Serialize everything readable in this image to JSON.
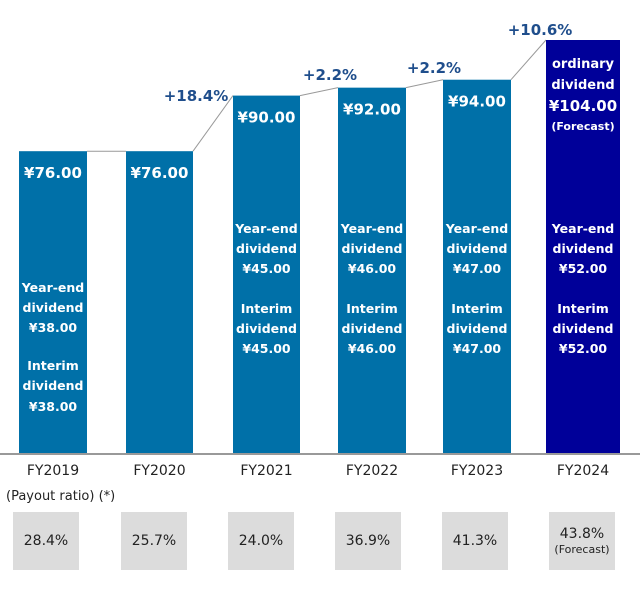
{
  "chart_data": {
    "type": "bar",
    "title": "",
    "xlabel": "",
    "ylabel": "",
    "categories": [
      "FY2019",
      "FY2020",
      "FY2021",
      "FY2022",
      "FY2023",
      "FY2024"
    ],
    "values": [
      76.0,
      76.0,
      90.0,
      92.0,
      94.0,
      104.0
    ],
    "ylim": [
      0,
      110
    ],
    "grid": false,
    "bars": [
      {
        "category": "FY2019",
        "total_label": "¥76.00",
        "year_end_label": [
          "Year-end",
          "dividend",
          "¥38.00"
        ],
        "interim_label": [
          "Interim",
          "dividend",
          "¥38.00"
        ],
        "year_end": 38.0,
        "interim": 38.0,
        "color": "#0070a8"
      },
      {
        "category": "FY2020",
        "total_label": "¥76.00",
        "color": "#0070a8"
      },
      {
        "category": "FY2021",
        "total_label": "¥90.00",
        "year_end_label": [
          "Year-end",
          "dividend",
          "¥45.00"
        ],
        "interim_label": [
          "Interim",
          "dividend",
          "¥45.00"
        ],
        "year_end": 45.0,
        "interim": 45.0,
        "color": "#0070a8"
      },
      {
        "category": "FY2022",
        "total_label": "¥92.00",
        "year_end_label": [
          "Year-end",
          "dividend",
          "¥46.00"
        ],
        "interim_label": [
          "Interim",
          "dividend",
          "¥46.00"
        ],
        "year_end": 46.0,
        "interim": 46.0,
        "color": "#0070a8"
      },
      {
        "category": "FY2023",
        "total_label": "¥94.00",
        "year_end_label": [
          "Year-end",
          "dividend",
          "¥47.00"
        ],
        "interim_label": [
          "Interim",
          "dividend",
          "¥47.00"
        ],
        "year_end": 47.0,
        "interim": 47.0,
        "color": "#0070a8"
      },
      {
        "category": "FY2024",
        "total_label": "¥104.00",
        "total_prefix": [
          "ordinary",
          "dividend"
        ],
        "total_note": "(Forecast)",
        "year_end_label": [
          "Year-end",
          "dividend",
          "¥52.00"
        ],
        "interim_label": [
          "Interim",
          "dividend",
          "¥52.00"
        ],
        "year_end": 52.0,
        "interim": 52.0,
        "color": "#000099"
      }
    ],
    "growth_annotations": [
      {
        "from": "FY2020",
        "to": "FY2021",
        "label": "+18.4%"
      },
      {
        "from": "FY2021",
        "to": "FY2022",
        "label": "+2.2%"
      },
      {
        "from": "FY2022",
        "to": "FY2023",
        "label": "+2.2%"
      },
      {
        "from": "FY2023",
        "to": "FY2024",
        "label": "+10.6%"
      }
    ],
    "colors": {
      "bar": "#0070a8",
      "forecast_bar": "#000099",
      "growth_text": "#1f4e8c",
      "connector": "#999999",
      "axis": "#999999"
    }
  },
  "payout": {
    "title": "(Payout ratio) (*)",
    "values": [
      {
        "category": "FY2019",
        "value": "28.4%"
      },
      {
        "category": "FY2020",
        "value": "25.7%"
      },
      {
        "category": "FY2021",
        "value": "24.0%"
      },
      {
        "category": "FY2022",
        "value": "36.9%"
      },
      {
        "category": "FY2023",
        "value": "41.3%"
      },
      {
        "category": "FY2024",
        "value": "43.8%",
        "note": "(Forecast)"
      }
    ]
  }
}
